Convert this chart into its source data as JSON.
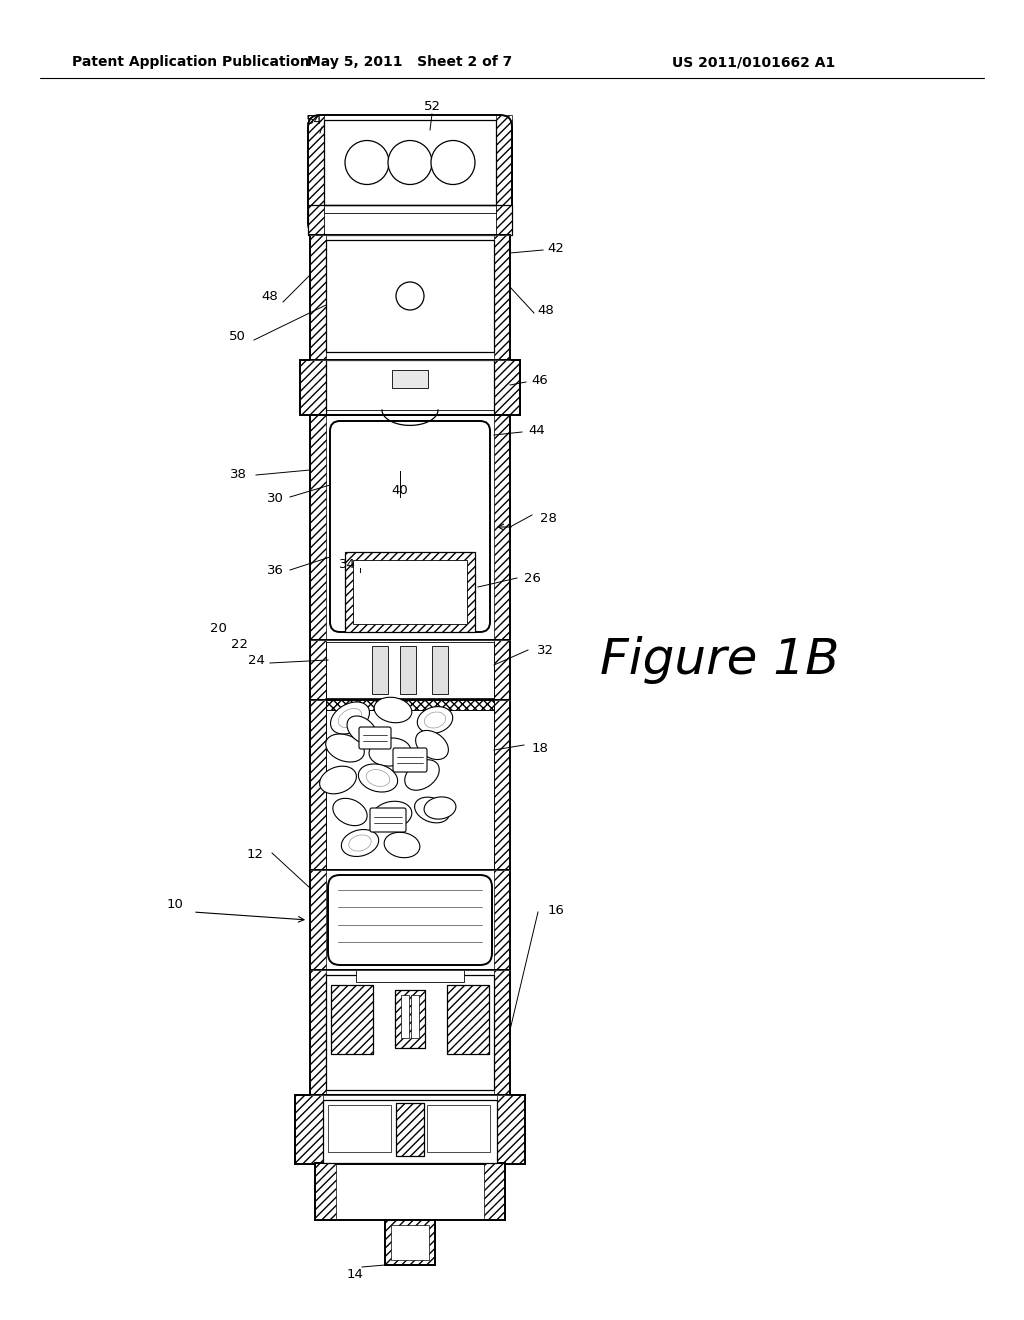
{
  "bg_color": "#ffffff",
  "header_left": "Patent Application Publication",
  "header_center": "May 5, 2011   Sheet 2 of 7",
  "header_right": "US 2011/0101662 A1",
  "figure_label": "Figure 1B",
  "header_fontsize": 10,
  "label_fontsize": 9.5,
  "figure_fontsize": 36
}
